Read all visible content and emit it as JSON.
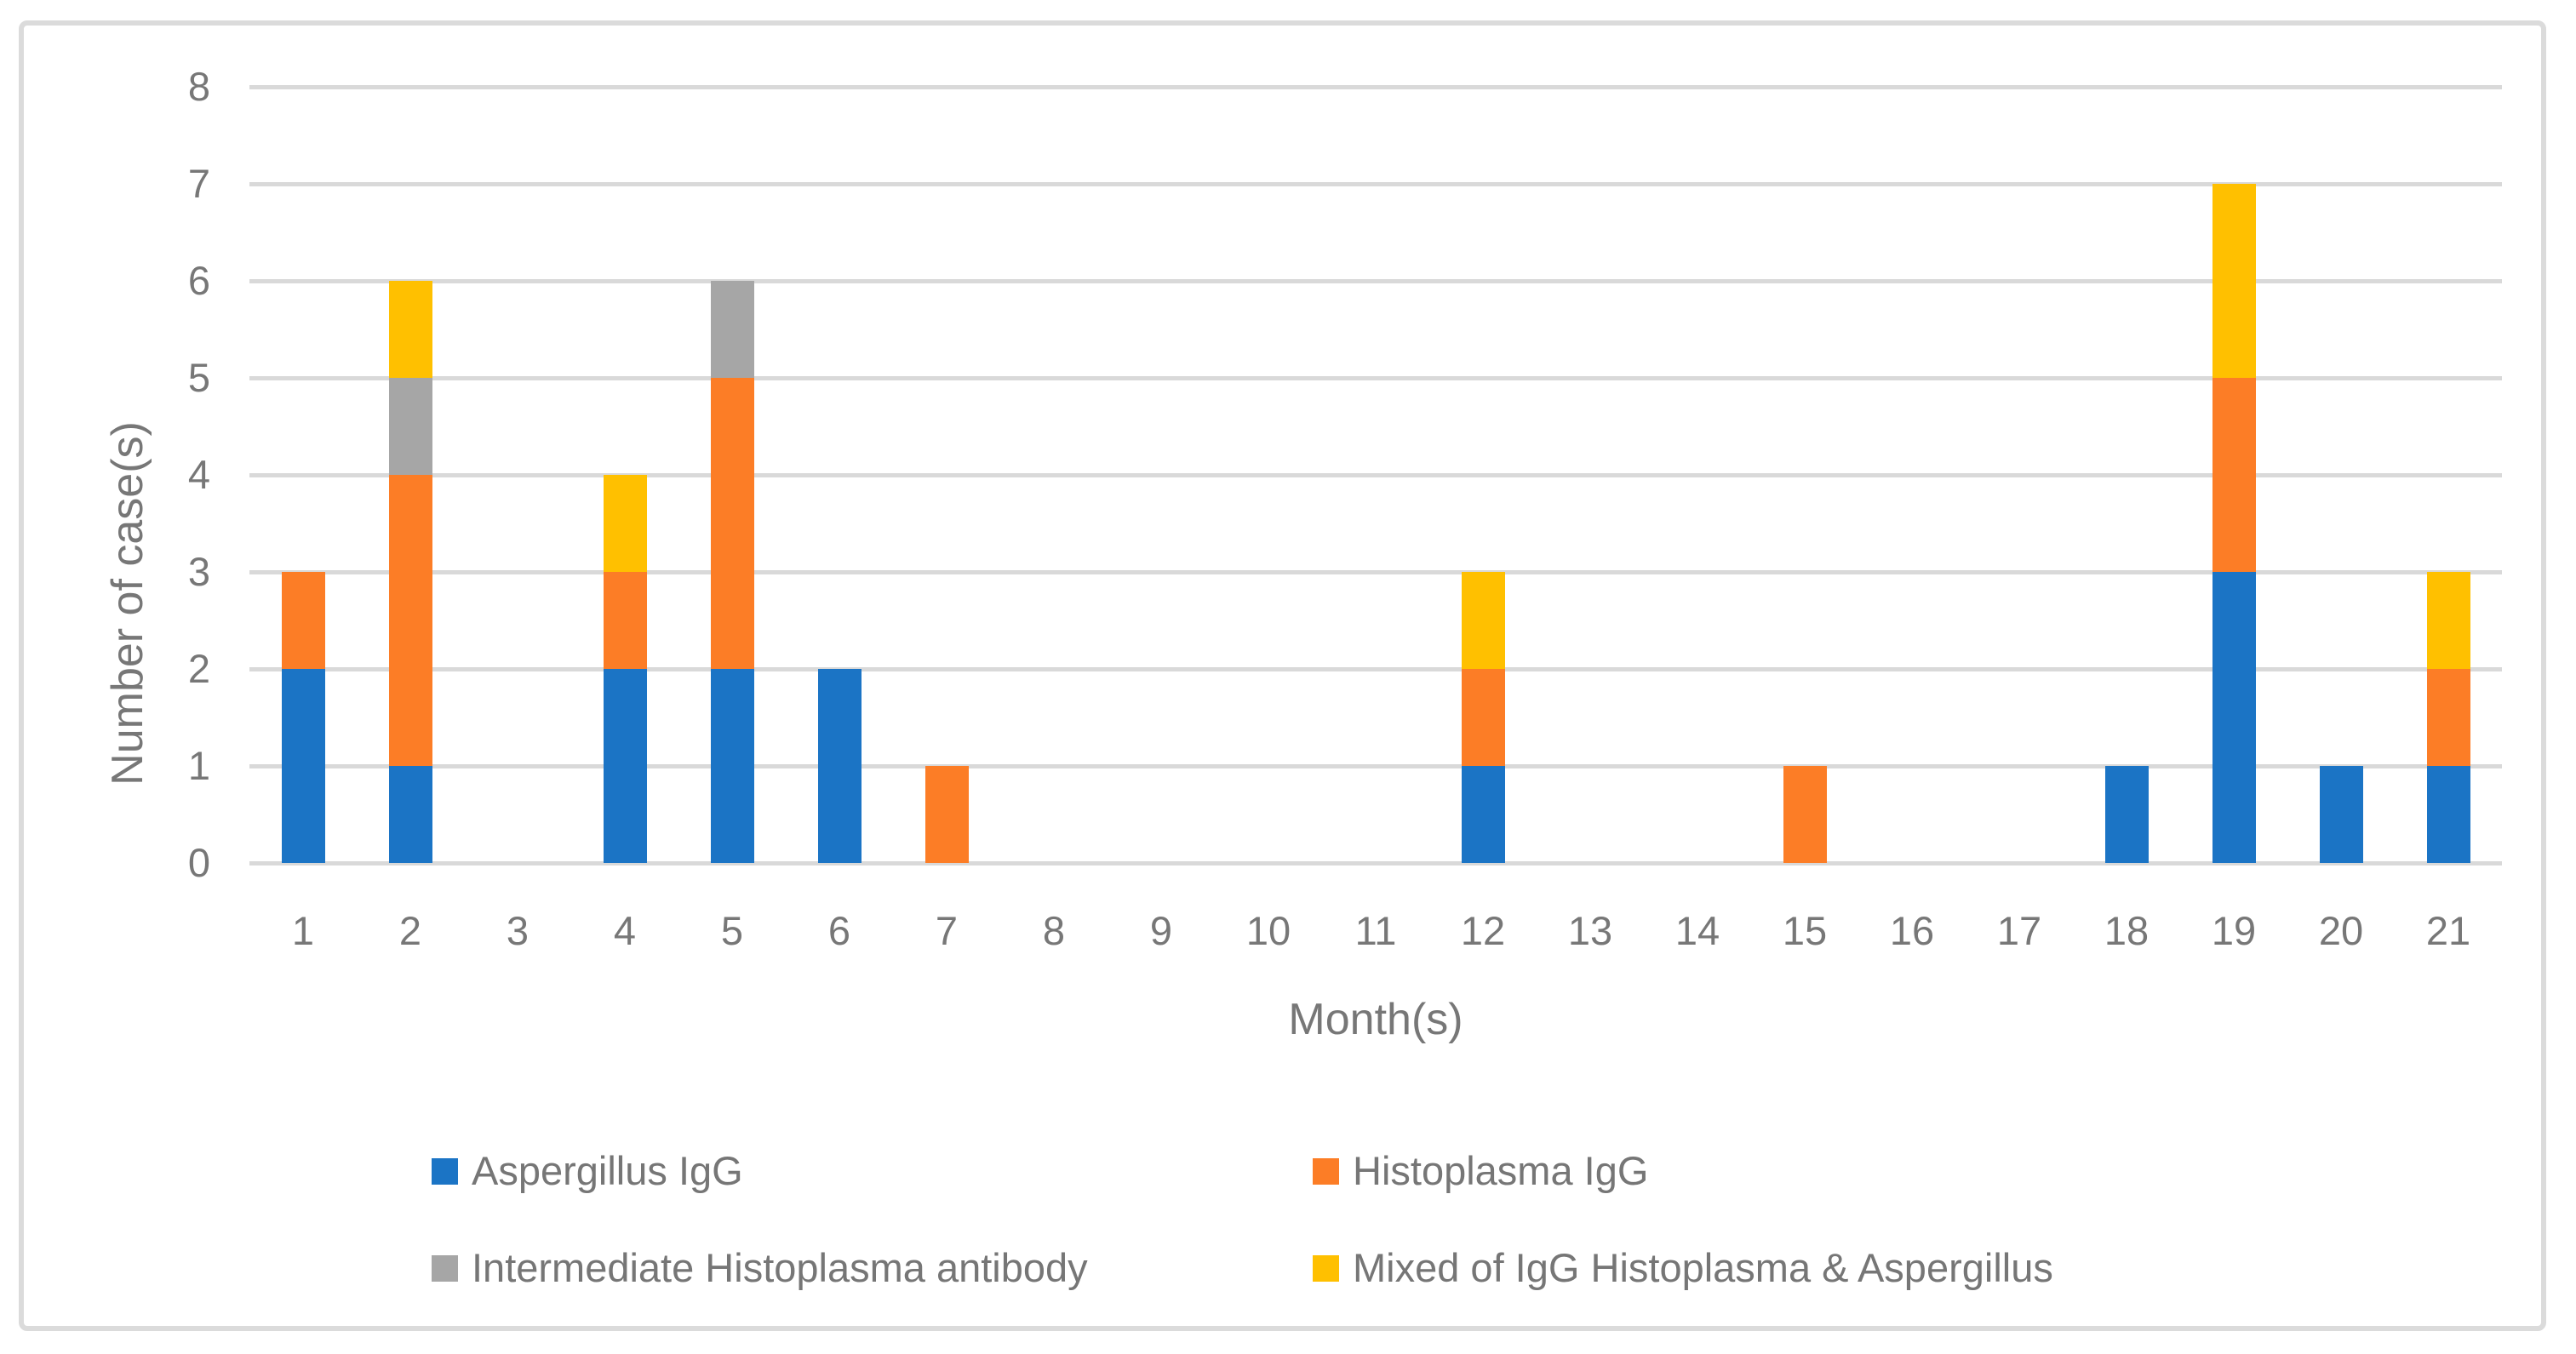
{
  "chart_data": {
    "type": "bar",
    "stacked": true,
    "title": "",
    "xlabel": "Month(s)",
    "ylabel": "Number of case(s)",
    "ylim": [
      0,
      8
    ],
    "yticks": [
      0,
      1,
      2,
      3,
      4,
      5,
      6,
      7,
      8
    ],
    "grid": true,
    "legend_position": "bottom",
    "categories": [
      1,
      2,
      3,
      4,
      5,
      6,
      7,
      8,
      9,
      10,
      11,
      12,
      13,
      14,
      15,
      16,
      17,
      18,
      19,
      20,
      21
    ],
    "series": [
      {
        "name": "Aspergillus IgG",
        "color": "#1B74C5",
        "values": [
          2,
          1,
          0,
          2,
          2,
          2,
          0,
          0,
          0,
          0,
          0,
          1,
          0,
          0,
          0,
          0,
          0,
          1,
          3,
          1,
          1
        ]
      },
      {
        "name": "Histoplasma IgG",
        "color": "#FC7D26",
        "values": [
          1,
          3,
          0,
          1,
          3,
          0,
          1,
          0,
          0,
          0,
          0,
          1,
          0,
          0,
          1,
          0,
          0,
          0,
          2,
          0,
          1
        ]
      },
      {
        "name": "Intermediate Histoplasma antibody",
        "color": "#A6A6A6",
        "values": [
          0,
          1,
          0,
          0,
          1,
          0,
          0,
          0,
          0,
          0,
          0,
          0,
          0,
          0,
          0,
          0,
          0,
          0,
          0,
          0,
          0
        ]
      },
      {
        "name": "Mixed of IgG Histoplasma & Aspergillus",
        "color": "#FFC000",
        "values": [
          0,
          1,
          0,
          1,
          0,
          0,
          0,
          0,
          0,
          0,
          0,
          1,
          0,
          0,
          0,
          0,
          0,
          0,
          2,
          0,
          1
        ]
      }
    ]
  },
  "appearance": {
    "gridline_color": "#D9D9D9",
    "axis_text_color": "#777777",
    "border_color": "#DBDBDB",
    "background_color": "#FFFFFF"
  }
}
